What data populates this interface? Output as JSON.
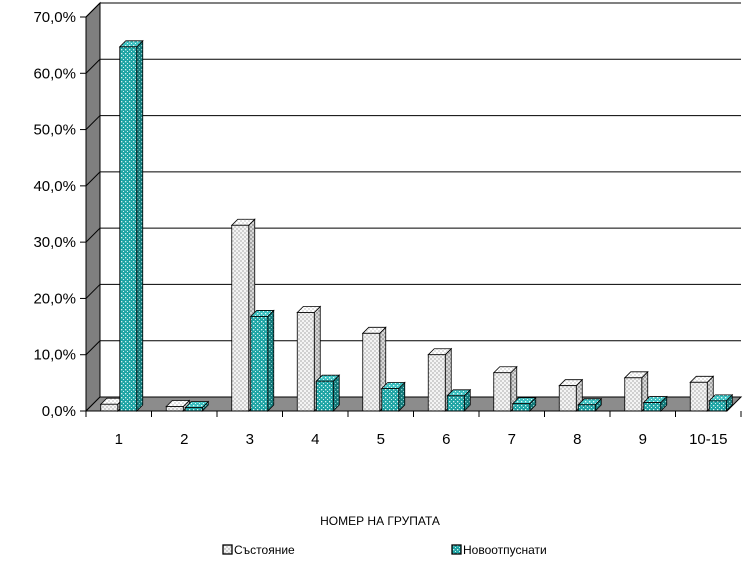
{
  "chart_data": {
    "type": "bar",
    "categories": [
      "1",
      "2",
      "3",
      "4",
      "5",
      "6",
      "7",
      "8",
      "9",
      "10-15"
    ],
    "series": [
      {
        "name": "Състояние",
        "values": [
          1.2,
          0.8,
          33.0,
          17.5,
          13.8,
          10.0,
          6.8,
          4.5,
          5.9,
          5.1
        ],
        "color": "#f2f2f2",
        "pattern": "light-checker"
      },
      {
        "name": "Новоотпуснати",
        "values": [
          64.7,
          0.6,
          16.8,
          5.3,
          4.0,
          2.7,
          1.3,
          1.1,
          1.5,
          1.8
        ],
        "color": "#1fa5a5",
        "pattern": "teal-dots"
      }
    ],
    "xlabel": "НОМЕР НА ГРУПАТА",
    "ylabel": "",
    "ylim": [
      0,
      70
    ],
    "y_ticks": [
      "0,0%",
      "10,0%",
      "20,0%",
      "30,0%",
      "40,0%",
      "50,0%",
      "60,0%",
      "70,0%"
    ],
    "grid": true,
    "legend_position": "bottom",
    "style": "3d-column"
  }
}
